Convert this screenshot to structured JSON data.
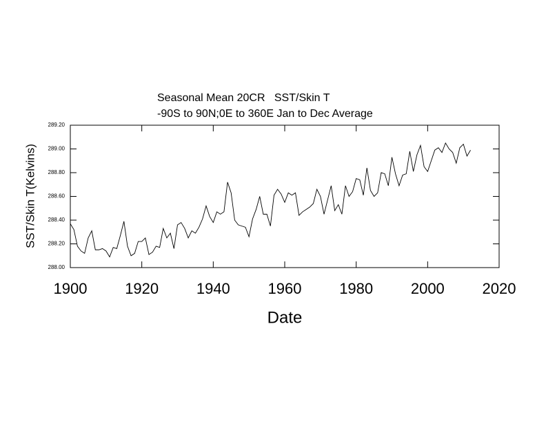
{
  "chart_data": {
    "type": "line",
    "title": [
      "Seasonal Mean 20CR   SST/Skin T",
      "-90S to 90N;0E to 360E Jan to Dec Average"
    ],
    "x_label": "Date",
    "y_label": "SST/Skin T(Kelvins)",
    "color": "#000000",
    "x": [
      1900,
      1901,
      1902,
      1903,
      1904,
      1905,
      1906,
      1907,
      1908,
      1909,
      1910,
      1911,
      1912,
      1913,
      1914,
      1915,
      1916,
      1917,
      1918,
      1919,
      1920,
      1921,
      1922,
      1923,
      1924,
      1925,
      1926,
      1927,
      1928,
      1929,
      1930,
      1931,
      1932,
      1933,
      1934,
      1935,
      1936,
      1937,
      1938,
      1939,
      1940,
      1941,
      1942,
      1943,
      1944,
      1945,
      1946,
      1947,
      1948,
      1949,
      1950,
      1951,
      1952,
      1953,
      1954,
      1955,
      1956,
      1957,
      1958,
      1959,
      1960,
      1961,
      1962,
      1963,
      1964,
      1965,
      1966,
      1967,
      1968,
      1969,
      1970,
      1971,
      1972,
      1973,
      1974,
      1975,
      1976,
      1977,
      1978,
      1979,
      1980,
      1981,
      1982,
      1983,
      1984,
      1985,
      1986,
      1987,
      1988,
      1989,
      1990,
      1991,
      1992,
      1993,
      1994,
      1995,
      1996,
      1997,
      1998,
      1999,
      2000,
      2001,
      2002,
      2003,
      2004,
      2005,
      2006,
      2007,
      2008,
      2009,
      2010,
      2011,
      2012
    ],
    "values": [
      288.37,
      288.32,
      288.18,
      288.14,
      288.12,
      288.25,
      288.31,
      288.15,
      288.15,
      288.16,
      288.14,
      288.09,
      288.17,
      288.16,
      288.27,
      288.39,
      288.18,
      288.1,
      288.12,
      288.22,
      288.22,
      288.25,
      288.11,
      288.13,
      288.18,
      288.17,
      288.33,
      288.25,
      288.29,
      288.16,
      288.36,
      288.38,
      288.33,
      288.25,
      288.31,
      288.29,
      288.34,
      288.41,
      288.52,
      288.43,
      288.38,
      288.47,
      288.45,
      288.47,
      288.72,
      288.63,
      288.4,
      288.36,
      288.35,
      288.34,
      288.26,
      288.41,
      288.49,
      288.6,
      288.45,
      288.45,
      288.35,
      288.61,
      288.66,
      288.62,
      288.55,
      288.63,
      288.61,
      288.63,
      288.44,
      288.47,
      288.49,
      288.51,
      288.54,
      288.66,
      288.6,
      288.45,
      288.57,
      288.69,
      288.48,
      288.53,
      288.45,
      288.69,
      288.6,
      288.64,
      288.75,
      288.74,
      288.61,
      288.84,
      288.65,
      288.6,
      288.63,
      288.8,
      288.79,
      288.69,
      288.93,
      288.79,
      288.69,
      288.78,
      288.79,
      288.98,
      288.81,
      288.95,
      289.03,
      288.85,
      288.81,
      288.9,
      288.99,
      289.01,
      288.97,
      289.05,
      289.0,
      288.97,
      288.88,
      289.01,
      289.04,
      288.94,
      288.99
    ],
    "xlim": [
      1900,
      2020
    ],
    "xticks": [
      1900,
      1920,
      1940,
      1960,
      1980,
      2000,
      2020
    ],
    "ylim": [
      288.0,
      289.2
    ],
    "yticks": [
      {
        "value": 288.0,
        "label": "288.00"
      },
      {
        "value": 288.2,
        "label": "288.20"
      },
      {
        "value": 288.4,
        "label": "288.40"
      },
      {
        "value": 288.6,
        "label": "288.60"
      },
      {
        "value": 288.8,
        "label": "288.80"
      },
      {
        "value": 289.0,
        "label": "289.00"
      },
      {
        "value": 289.2,
        "label": "289.20"
      }
    ],
    "grid": false
  }
}
